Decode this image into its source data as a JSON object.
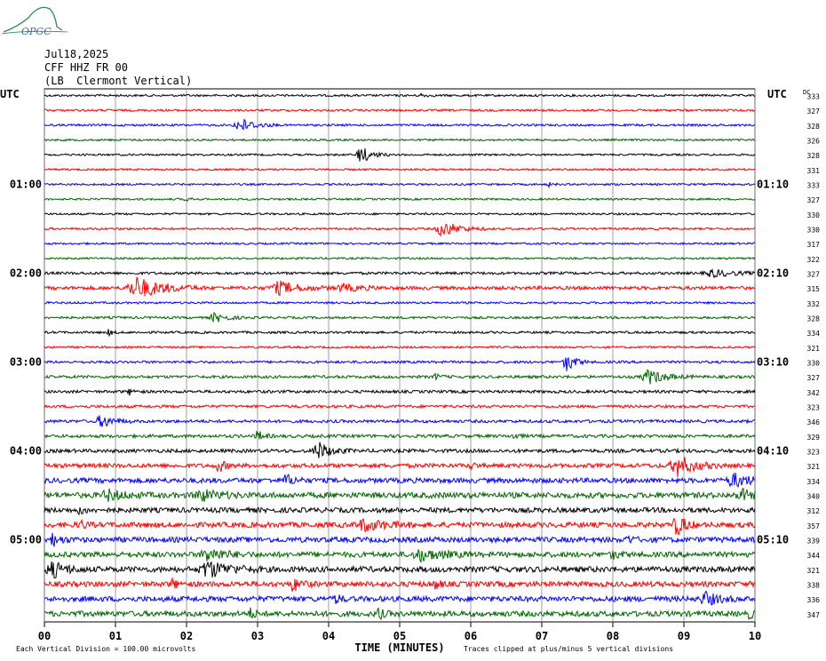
{
  "header": {
    "date": "Jul18,2025",
    "station": "CFF HHZ FR 00",
    "location": "(LB  Clermont Vertical)",
    "logo_text": "OPGC"
  },
  "axis": {
    "left_title": "UTC",
    "right_title": "UTC",
    "dc_title": "DC",
    "xlabel": "TIME (MINUTES)",
    "x_ticks": [
      "00",
      "01",
      "02",
      "03",
      "04",
      "05",
      "06",
      "07",
      "08",
      "09",
      "10"
    ]
  },
  "footer": {
    "scale_note": "Each Vertical Division =  100.00 microvolts",
    "clip_note": "Traces clipped at plus/minus 5 vertical divisions"
  },
  "chart_data": {
    "type": "line",
    "title": "",
    "x_range": [
      0,
      10
    ],
    "trace_colors": [
      "#000000",
      "#ff0000",
      "#0000ff",
      "#006400"
    ],
    "left_hour_labels": [
      {
        "row": 6,
        "label": "01:00"
      },
      {
        "row": 12,
        "label": "02:00"
      },
      {
        "row": 18,
        "label": "03:00"
      },
      {
        "row": 24,
        "label": "04:00"
      },
      {
        "row": 30,
        "label": "05:00"
      }
    ],
    "right_hour_labels": [
      {
        "row": 6,
        "label": "01:10"
      },
      {
        "row": 12,
        "label": "02:10"
      },
      {
        "row": 18,
        "label": "03:10"
      },
      {
        "row": 24,
        "label": "04:10"
      },
      {
        "row": 30,
        "label": "05:10"
      }
    ],
    "dc_values": [
      333,
      327,
      328,
      326,
      328,
      331,
      333,
      327,
      330,
      330,
      317,
      322,
      327,
      315,
      332,
      328,
      334,
      321,
      330,
      327,
      342,
      323,
      346,
      329,
      323,
      321,
      334,
      340,
      312,
      357,
      339,
      344,
      321,
      338,
      336,
      347
    ],
    "traces": [
      {
        "amp": 1.2,
        "events": [
          {
            "t": 5.3,
            "a": 2
          }
        ]
      },
      {
        "amp": 1.2,
        "events": []
      },
      {
        "amp": 1.2,
        "events": [
          {
            "t": 2.75,
            "a": 8,
            "w": 0.35
          }
        ]
      },
      {
        "amp": 1.1,
        "events": []
      },
      {
        "amp": 1.1,
        "events": [
          {
            "t": 4.45,
            "a": 10,
            "w": 0.25
          }
        ]
      },
      {
        "amp": 1.1,
        "events": []
      },
      {
        "amp": 1.1,
        "events": [
          {
            "t": 7.1,
            "a": 2
          }
        ]
      },
      {
        "amp": 1.1,
        "events": [
          {
            "t": 2.0,
            "a": 2
          }
        ]
      },
      {
        "amp": 1.1,
        "events": []
      },
      {
        "amp": 1.2,
        "events": [
          {
            "t": 5.6,
            "a": 9,
            "w": 0.4
          }
        ]
      },
      {
        "amp": 1.1,
        "events": []
      },
      {
        "amp": 1.1,
        "events": []
      },
      {
        "amp": 1.5,
        "events": [
          {
            "t": 9.4,
            "a": 4,
            "w": 0.5
          }
        ]
      },
      {
        "amp": 2.0,
        "events": [
          {
            "t": 1.3,
            "a": 12,
            "w": 0.6
          },
          {
            "t": 3.3,
            "a": 7,
            "w": 0.5
          },
          {
            "t": 4.2,
            "a": 4,
            "w": 0.4
          }
        ]
      },
      {
        "amp": 1.2,
        "events": []
      },
      {
        "amp": 1.3,
        "events": [
          {
            "t": 2.4,
            "a": 5,
            "w": 0.3
          }
        ]
      },
      {
        "amp": 1.3,
        "events": [
          {
            "t": 0.9,
            "a": 3
          }
        ]
      },
      {
        "amp": 1.2,
        "events": []
      },
      {
        "amp": 1.4,
        "events": [
          {
            "t": 7.35,
            "a": 11,
            "w": 0.2
          }
        ]
      },
      {
        "amp": 1.6,
        "events": [
          {
            "t": 8.5,
            "a": 8,
            "w": 0.4
          },
          {
            "t": 5.5,
            "a": 3
          }
        ]
      },
      {
        "amp": 1.6,
        "events": [
          {
            "t": 1.2,
            "a": 3
          }
        ]
      },
      {
        "amp": 1.6,
        "events": []
      },
      {
        "amp": 1.7,
        "events": [
          {
            "t": 0.8,
            "a": 7,
            "w": 0.3
          }
        ]
      },
      {
        "amp": 1.8,
        "events": [
          {
            "t": 3.0,
            "a": 6,
            "w": 0.15
          },
          {
            "t": 6.6,
            "a": 3
          }
        ]
      },
      {
        "amp": 2.0,
        "events": [
          {
            "t": 3.85,
            "a": 10,
            "w": 0.3
          }
        ]
      },
      {
        "amp": 2.4,
        "events": [
          {
            "t": 2.45,
            "a": 7,
            "w": 0.15
          },
          {
            "t": 8.9,
            "a": 12,
            "w": 0.4
          },
          {
            "t": 6.0,
            "a": 3
          }
        ]
      },
      {
        "amp": 2.8,
        "events": [
          {
            "t": 3.4,
            "a": 6,
            "w": 0.2
          },
          {
            "t": 9.7,
            "a": 7,
            "w": 0.4
          }
        ]
      },
      {
        "amp": 3.2,
        "events": [
          {
            "t": 0.9,
            "a": 5,
            "w": 0.4
          },
          {
            "t": 2.2,
            "a": 6,
            "w": 0.4
          },
          {
            "t": 9.8,
            "a": 6,
            "w": 0.3
          }
        ]
      },
      {
        "amp": 2.8,
        "events": [
          {
            "t": 0.5,
            "a": 4
          }
        ]
      },
      {
        "amp": 3.0,
        "events": [
          {
            "t": 4.5,
            "a": 6,
            "w": 0.5
          },
          {
            "t": 8.9,
            "a": 12,
            "w": 0.2
          },
          {
            "t": 0.5,
            "a": 5
          }
        ]
      },
      {
        "amp": 3.0,
        "events": [
          {
            "t": 0.1,
            "a": 7,
            "w": 0.2
          },
          {
            "t": 8.2,
            "a": 4
          }
        ]
      },
      {
        "amp": 3.0,
        "events": [
          {
            "t": 2.3,
            "a": 7,
            "w": 0.4
          },
          {
            "t": 5.3,
            "a": 6,
            "w": 0.5
          },
          {
            "t": 8.0,
            "a": 5
          }
        ]
      },
      {
        "amp": 3.2,
        "events": [
          {
            "t": 0.1,
            "a": 9,
            "w": 0.3
          },
          {
            "t": 2.3,
            "a": 9,
            "w": 0.5
          }
        ]
      },
      {
        "amp": 3.0,
        "events": [
          {
            "t": 1.8,
            "a": 5
          },
          {
            "t": 3.5,
            "a": 7,
            "w": 0.2
          },
          {
            "t": 5.5,
            "a": 5
          }
        ]
      },
      {
        "amp": 3.0,
        "events": [
          {
            "t": 4.1,
            "a": 5
          },
          {
            "t": 9.3,
            "a": 7,
            "w": 0.3
          }
        ]
      },
      {
        "amp": 3.0,
        "events": [
          {
            "t": 2.9,
            "a": 5
          },
          {
            "t": 4.7,
            "a": 6
          },
          {
            "t": 9.9,
            "a": 5
          }
        ]
      }
    ]
  }
}
